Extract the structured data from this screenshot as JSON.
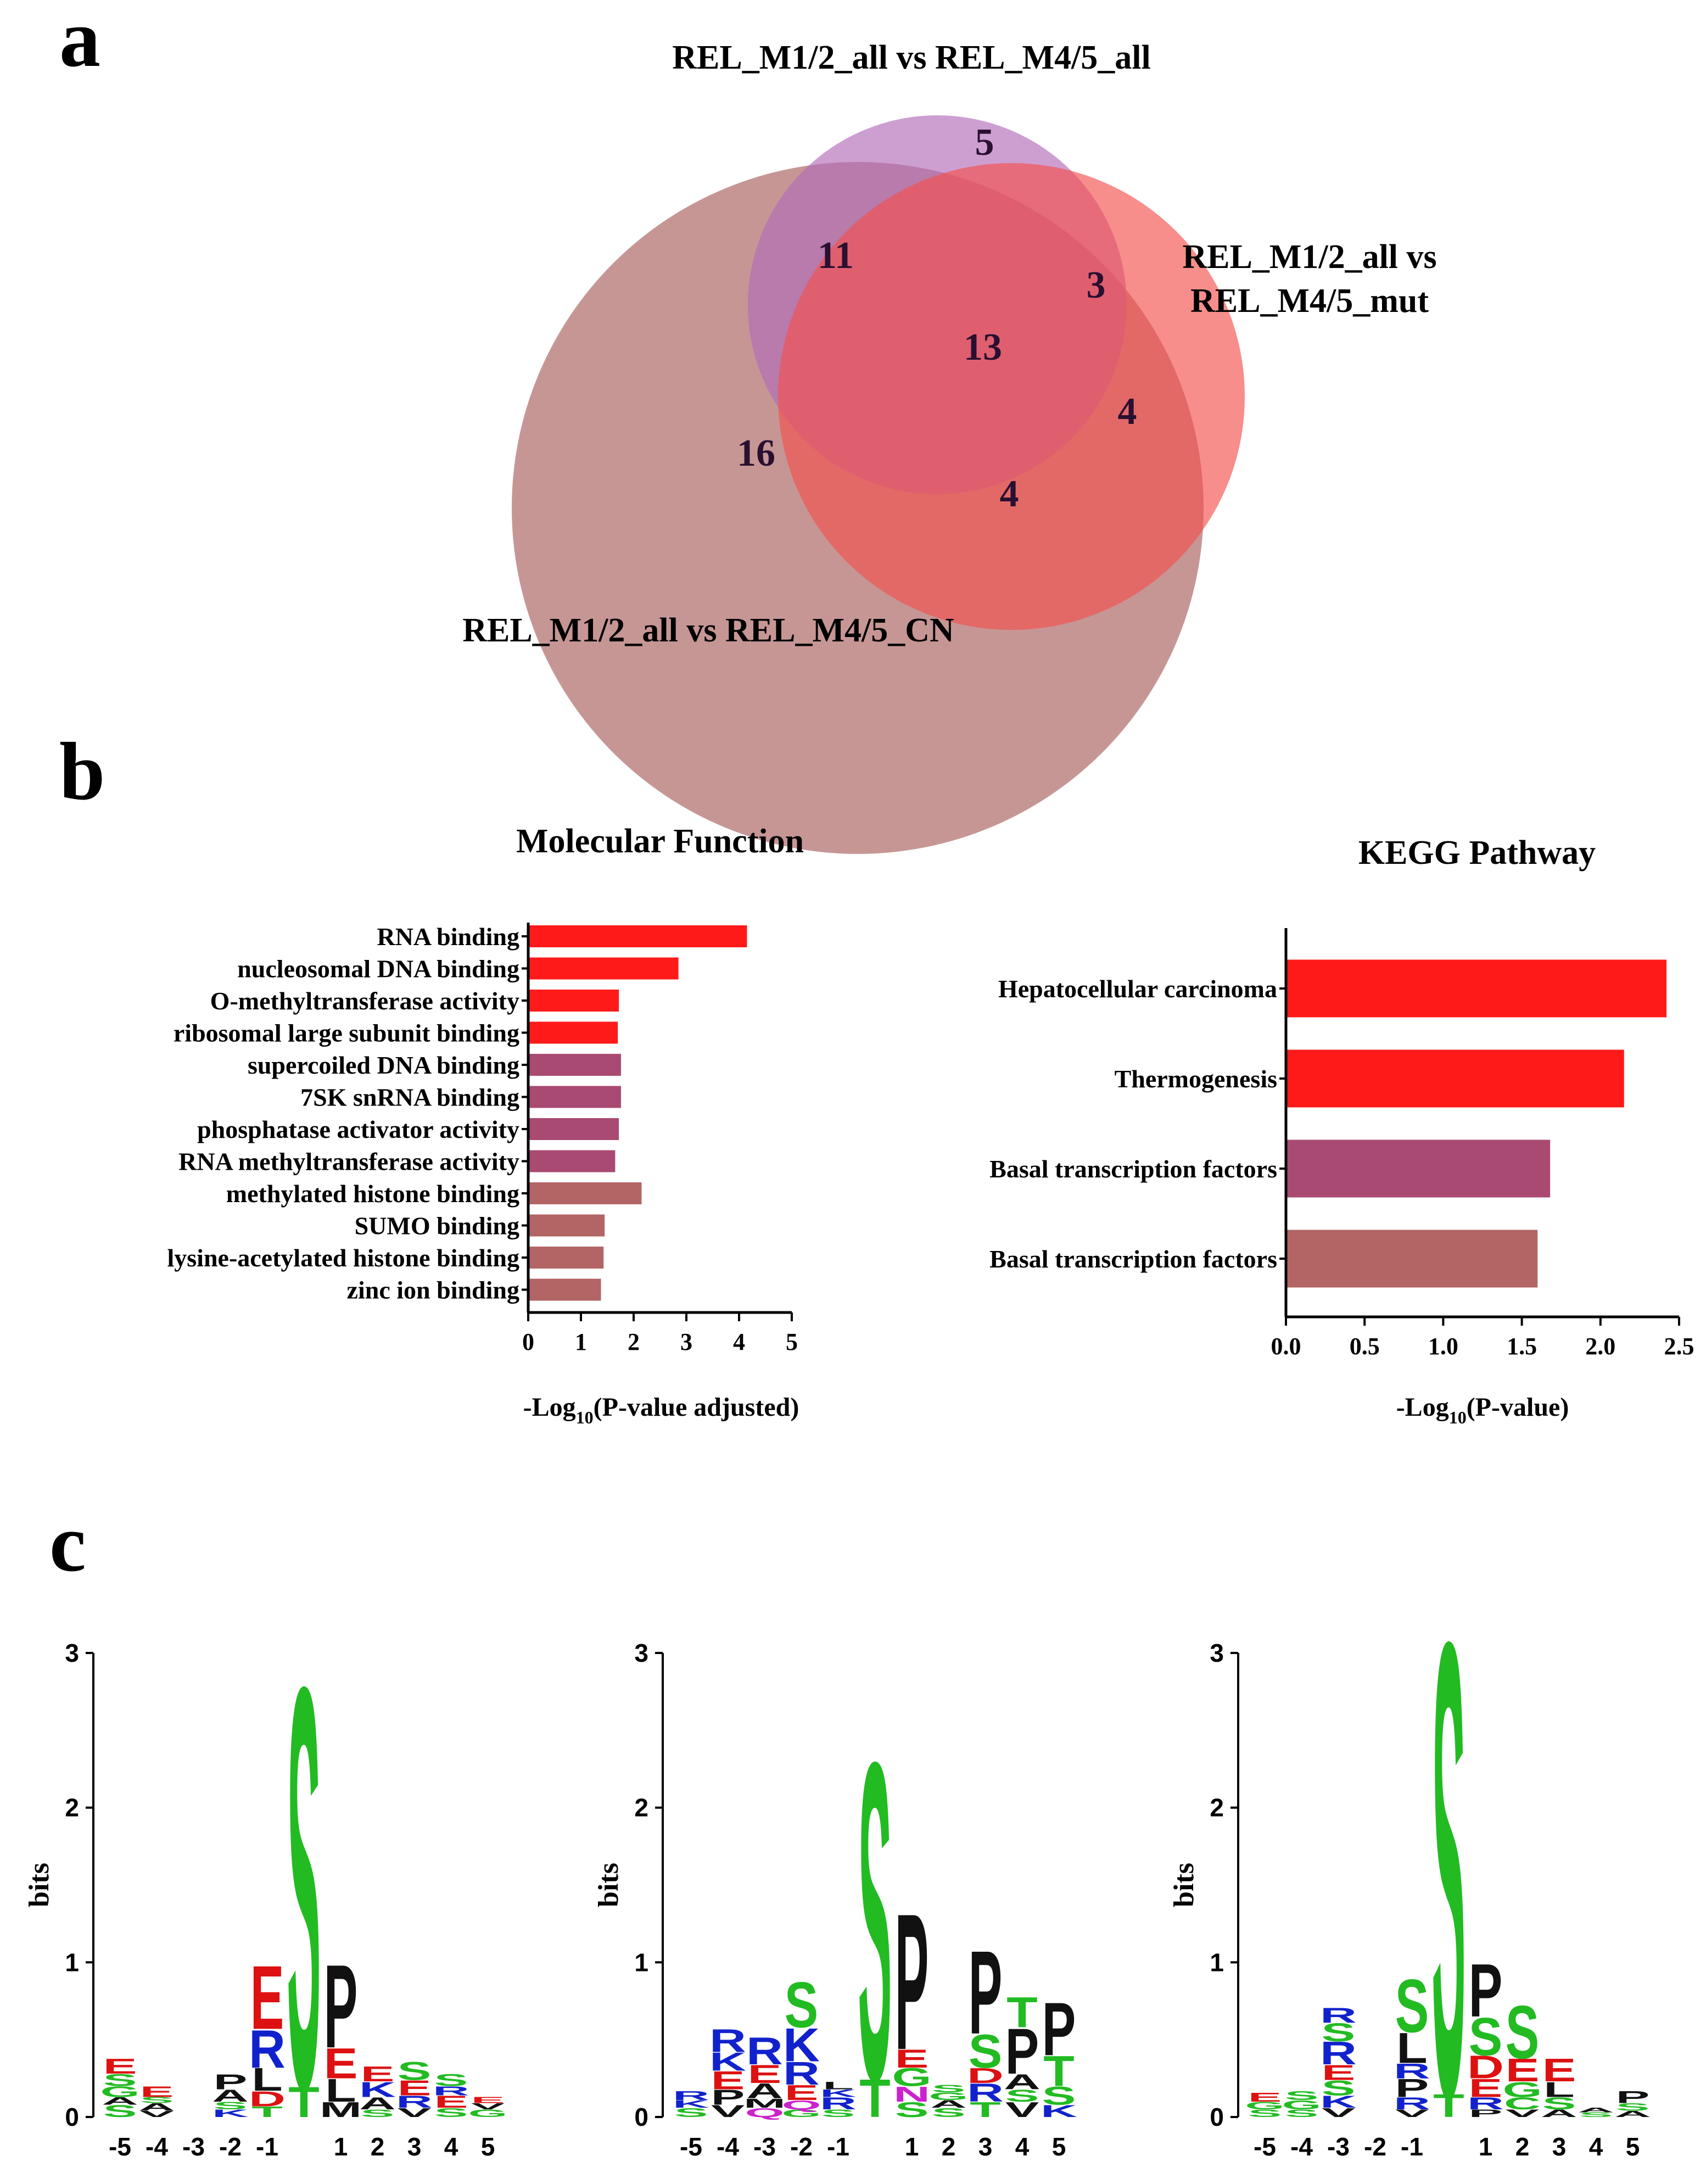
{
  "panel_labels": {
    "a": "a",
    "b": "b",
    "c": "c"
  },
  "chart_data": [
    {
      "type": "venn",
      "sets": [
        {
          "name": "REL_M1/2_all vs REL_M4/5_all",
          "color": "#b26bb8",
          "label_lines": [
            "REL_M1/2_all vs REL_M4/5_all"
          ]
        },
        {
          "name": "REL_M1/2_all vs REL_M4/5_mut",
          "color": "#f2524f",
          "label_lines": [
            "REL_M1/2_all vs",
            "REL_M4/5_mut"
          ]
        },
        {
          "name": "REL_M1/2_all vs REL_M4/5_CN",
          "color": "#a0504e",
          "label_lines": [
            "REL_M1/2_all vs REL_M4/5_CN"
          ]
        }
      ],
      "regions": [
        {
          "key": "all_only",
          "value": "5"
        },
        {
          "key": "all_CN",
          "value": "11"
        },
        {
          "key": "all_mut",
          "value": "3"
        },
        {
          "key": "all_mut_CN",
          "value": "13"
        },
        {
          "key": "mut_only",
          "value": "4"
        },
        {
          "key": "CN_only",
          "value": "16"
        },
        {
          "key": "mut_CN",
          "value": "4"
        }
      ]
    },
    {
      "type": "bar",
      "orientation": "horizontal",
      "title": "Molecular Function",
      "xlabel_main": "-Log",
      "xlabel_sub": "10",
      "xlabel_rest": "(P-value adjusted)",
      "xlim": [
        0,
        5
      ],
      "xticks": [
        "0",
        "1",
        "2",
        "3",
        "4",
        "5"
      ],
      "categories": [
        "RNA binding",
        "nucleosomal DNA binding",
        "O-methyltransferase activity",
        "ribosomal large subunit binding",
        "supercoiled DNA binding",
        "7SK snRNA binding",
        "phosphatase activator activity",
        "RNA methyltransferase activity",
        "methylated histone binding",
        "SUMO binding",
        "lysine-acetylated histone binding",
        "zinc ion binding"
      ],
      "values": [
        4.15,
        2.85,
        1.72,
        1.7,
        1.76,
        1.76,
        1.72,
        1.65,
        2.15,
        1.45,
        1.43,
        1.38
      ],
      "colors": [
        "#ff1a1a",
        "#ff1a1a",
        "#ff1a1a",
        "#ff1a1a",
        "#a94a72",
        "#a94a72",
        "#a94a72",
        "#a94a72",
        "#b36464",
        "#b36464",
        "#b36464",
        "#b36464"
      ]
    },
    {
      "type": "bar",
      "orientation": "horizontal",
      "title": "KEGG Pathway",
      "xlabel_main": "-Log",
      "xlabel_sub": "10",
      "xlabel_rest": "(P-value)",
      "xlim": [
        0,
        2.5
      ],
      "xticks": [
        "0.0",
        "0.5",
        "1.0",
        "1.5",
        "2.0",
        "2.5"
      ],
      "categories": [
        "Hepatocellular carcinoma",
        "Thermogenesis",
        "Basal transcription factors",
        "Basal transcription factors"
      ],
      "values": [
        2.42,
        2.15,
        1.68,
        1.6
      ],
      "colors": [
        "#ff1a1a",
        "#ff1a1a",
        "#a94a72",
        "#b36464"
      ]
    },
    {
      "type": "sequence_logo",
      "ylabel": "bits",
      "ylim": [
        0,
        3
      ],
      "yticks": [
        "0",
        "1",
        "2",
        "3"
      ],
      "positions": [
        "-5",
        "-4",
        "-3",
        "-2",
        "-1",
        "",
        "1",
        "2",
        "3",
        "4",
        "5"
      ],
      "residue_colors": {
        "S": "#22bb22",
        "T": "#22bb22",
        "G": "#22bb22",
        "C": "#22bb22",
        "E": "#dd1111",
        "D": "#dd1111",
        "R": "#1122cc",
        "K": "#1122cc",
        "H": "#1122cc",
        "P": "#111111",
        "A": "#111111",
        "L": "#111111",
        "V": "#111111",
        "I": "#111111",
        "M": "#111111",
        "F": "#111111",
        "W": "#111111",
        "N": "#cc22cc",
        "Q": "#cc22cc",
        "Y": "#22bb22"
      },
      "logos": [
        {
          "columns": [
            [
              [
                "S",
                0.08
              ],
              [
                "A",
                0.05
              ],
              [
                "G",
                0.07
              ],
              [
                "S",
                0.08
              ],
              [
                "E",
                0.1
              ]
            ],
            [
              [
                "V",
                0.04
              ],
              [
                "A",
                0.05
              ],
              [
                "S",
                0.04
              ],
              [
                "E",
                0.07
              ]
            ],
            [],
            [
              [
                "K",
                0.05
              ],
              [
                "S",
                0.05
              ],
              [
                "A",
                0.08
              ],
              [
                "P",
                0.1
              ]
            ],
            [
              [
                "T",
                0.07
              ],
              [
                "D",
                0.1
              ],
              [
                "L",
                0.15
              ],
              [
                "R",
                0.25
              ],
              [
                "E",
                0.42
              ]
            ],
            [
              [
                "T",
                0.2
              ],
              [
                "S",
                2.65
              ]
            ],
            [
              [
                "M",
                0.1
              ],
              [
                "L",
                0.15
              ],
              [
                "E",
                0.2
              ],
              [
                "P",
                0.55
              ]
            ],
            [
              [
                "S",
                0.05
              ],
              [
                "A",
                0.08
              ],
              [
                "K",
                0.1
              ],
              [
                "E",
                0.1
              ]
            ],
            [
              [
                "V",
                0.06
              ],
              [
                "R",
                0.08
              ],
              [
                "E",
                0.1
              ],
              [
                "S",
                0.12
              ]
            ],
            [
              [
                "S",
                0.06
              ],
              [
                "E",
                0.08
              ],
              [
                "R",
                0.06
              ],
              [
                "S",
                0.08
              ]
            ],
            [
              [
                "G",
                0.05
              ],
              [
                "V",
                0.04
              ],
              [
                "E",
                0.04
              ]
            ]
          ]
        },
        {
          "columns": [
            [
              [
                "S",
                0.06
              ],
              [
                "K",
                0.05
              ],
              [
                "R",
                0.06
              ]
            ],
            [
              [
                "V",
                0.08
              ],
              [
                "P",
                0.1
              ],
              [
                "E",
                0.12
              ],
              [
                "K",
                0.12
              ],
              [
                "R",
                0.15
              ]
            ],
            [
              [
                "Q",
                0.06
              ],
              [
                "M",
                0.06
              ],
              [
                "A",
                0.1
              ],
              [
                "E",
                0.12
              ],
              [
                "R",
                0.18
              ]
            ],
            [
              [
                "G",
                0.05
              ],
              [
                "Q",
                0.06
              ],
              [
                "E",
                0.1
              ],
              [
                "R",
                0.15
              ],
              [
                "K",
                0.22
              ],
              [
                "S",
                0.3
              ]
            ],
            [
              [
                "S",
                0.05
              ],
              [
                "R",
                0.08
              ],
              [
                "K",
                0.05
              ],
              [
                "L",
                0.05
              ]
            ],
            [
              [
                "T",
                0.25
              ],
              [
                "S",
                2.1
              ]
            ],
            [
              [
                "S",
                0.1
              ],
              [
                "N",
                0.1
              ],
              [
                "G",
                0.12
              ],
              [
                "E",
                0.12
              ],
              [
                "P",
                0.9
              ]
            ],
            [
              [
                "S",
                0.06
              ],
              [
                "A",
                0.05
              ],
              [
                "G",
                0.05
              ],
              [
                "S",
                0.05
              ]
            ],
            [
              [
                "T",
                0.1
              ],
              [
                "R",
                0.12
              ],
              [
                "D",
                0.1
              ],
              [
                "S",
                0.22
              ],
              [
                "P",
                0.55
              ]
            ],
            [
              [
                "V",
                0.1
              ],
              [
                "S",
                0.08
              ],
              [
                "A",
                0.1
              ],
              [
                "P",
                0.3
              ],
              [
                "T",
                0.2
              ]
            ],
            [
              [
                "K",
                0.08
              ],
              [
                "S",
                0.12
              ],
              [
                "T",
                0.2
              ],
              [
                "P",
                0.35
              ]
            ]
          ]
        },
        {
          "columns": [
            [
              [
                "S",
                0.05
              ],
              [
                "G",
                0.05
              ],
              [
                "E",
                0.06
              ]
            ],
            [
              [
                "S",
                0.05
              ],
              [
                "G",
                0.06
              ],
              [
                "S",
                0.06
              ]
            ],
            [
              [
                "V",
                0.06
              ],
              [
                "K",
                0.08
              ],
              [
                "S",
                0.1
              ],
              [
                "E",
                0.1
              ],
              [
                "R",
                0.15
              ],
              [
                "S",
                0.12
              ],
              [
                "R",
                0.1
              ]
            ],
            [],
            [
              [
                "V",
                0.05
              ],
              [
                "R",
                0.08
              ],
              [
                "P",
                0.12
              ],
              [
                "R",
                0.1
              ],
              [
                "L",
                0.2
              ],
              [
                "S",
                0.35
              ]
            ],
            [
              [
                "T",
                0.15
              ],
              [
                "S",
                3.0
              ]
            ],
            [
              [
                "P",
                0.05
              ],
              [
                "R",
                0.08
              ],
              [
                "E",
                0.12
              ],
              [
                "D",
                0.15
              ],
              [
                "S",
                0.25
              ],
              [
                "P",
                0.35
              ]
            ],
            [
              [
                "V",
                0.05
              ],
              [
                "C",
                0.08
              ],
              [
                "G",
                0.1
              ],
              [
                "E",
                0.15
              ],
              [
                "S",
                0.35
              ]
            ],
            [
              [
                "A",
                0.05
              ],
              [
                "S",
                0.08
              ],
              [
                "L",
                0.1
              ],
              [
                "E",
                0.15
              ]
            ],
            [
              [
                "S",
                0.03
              ],
              [
                "A",
                0.03
              ]
            ],
            [
              [
                "A",
                0.04
              ],
              [
                "S",
                0.05
              ],
              [
                "P",
                0.08
              ]
            ]
          ]
        }
      ]
    }
  ]
}
